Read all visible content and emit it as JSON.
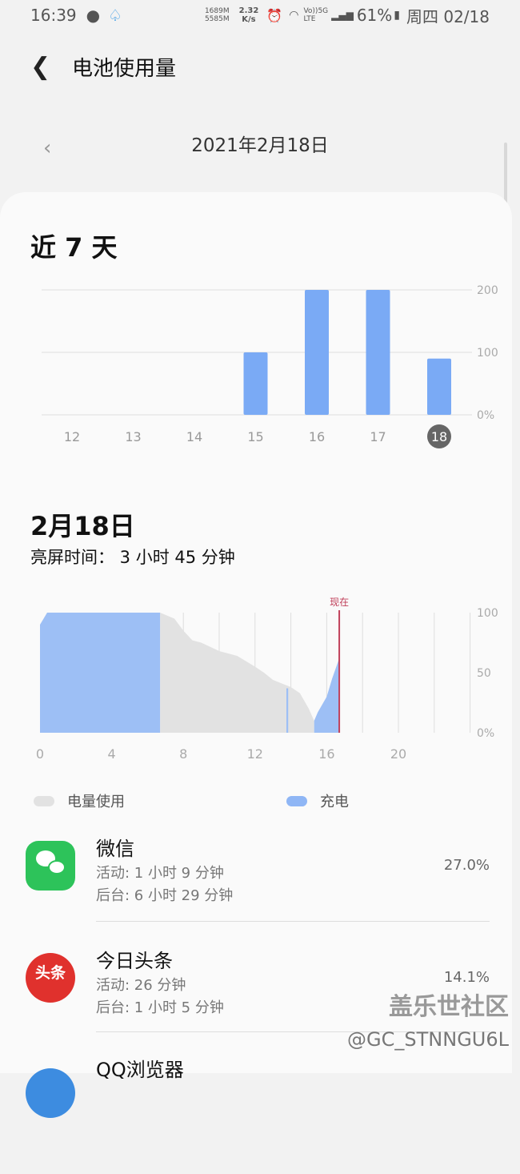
{
  "status": {
    "time": "16:39",
    "mem1": "1689M",
    "mem2": "5585M",
    "speed1": "2.32",
    "speed2": "K/s",
    "net1": "Vo))5G",
    "net2": "LTE",
    "battery": "61%",
    "date": "周四 02/18"
  },
  "header": {
    "title": "电池使用量",
    "back_icon": "arrow-left"
  },
  "date_nav": {
    "date": "2021年2月18日",
    "prev_icon": "chevron-left"
  },
  "week": {
    "title": "近 7 天"
  },
  "day": {
    "title": "2月18日",
    "screen_time": "亮屏时间： 3 小时 45 分钟"
  },
  "legend": {
    "usage": "电量使用",
    "charge": "充电"
  },
  "colors": {
    "bar": "#7aaaf5",
    "charge": "#9dbff5",
    "usage": "#e2e2e2",
    "now": "#c0405a"
  },
  "chart_data": [
    {
      "type": "bar",
      "categories": [
        "12",
        "13",
        "14",
        "15",
        "16",
        "17",
        "18"
      ],
      "values": [
        0,
        0,
        0,
        100,
        200,
        200,
        90
      ],
      "selected": "18",
      "yticks": [
        "0%",
        "100",
        "200"
      ],
      "ylim": [
        0,
        200
      ]
    },
    {
      "type": "area",
      "xticks": [
        "0",
        "4",
        "8",
        "12",
        "16",
        "20"
      ],
      "yticks": [
        "0%",
        "50",
        "100"
      ],
      "xlim": [
        0,
        24
      ],
      "ylim": [
        0,
        100
      ],
      "now_label": "现在",
      "now": 16.7,
      "charge_segments": [
        [
          [
            0,
            90
          ],
          [
            0.4,
            100
          ],
          [
            6.7,
            100
          ]
        ],
        [
          [
            13.75,
            0
          ],
          [
            13.75,
            37
          ],
          [
            13.85,
            37
          ],
          [
            13.85,
            0
          ]
        ],
        [
          [
            15.3,
            10
          ],
          [
            15.5,
            17
          ],
          [
            16,
            30
          ],
          [
            16.3,
            45
          ],
          [
            16.7,
            62
          ]
        ]
      ],
      "usage": [
        [
          6.7,
          100
        ],
        [
          7.5,
          95
        ],
        [
          8,
          85
        ],
        [
          8.5,
          77
        ],
        [
          9,
          75
        ],
        [
          10,
          68
        ],
        [
          11,
          64
        ],
        [
          12,
          55
        ],
        [
          12.5,
          50
        ],
        [
          13,
          44
        ],
        [
          14,
          38
        ],
        [
          14.5,
          33
        ],
        [
          15,
          20
        ],
        [
          15.3,
          10
        ]
      ]
    }
  ],
  "apps": [
    {
      "name": "微信",
      "active": "活动: 1 小时 9 分钟",
      "background": "后台: 6 小时 29 分钟",
      "percent": "27.0%",
      "icon": "wechat-icon"
    },
    {
      "name": "今日头条",
      "active": "活动: 26 分钟",
      "background": "后台: 1 小时 5 分钟",
      "percent": "14.1%",
      "icon": "toutiao-icon",
      "icon_text": "头条"
    },
    {
      "name": "QQ浏览器"
    }
  ],
  "watermark": {
    "line1": "盖乐世社区",
    "line2": "@GC_STNNGU6L"
  }
}
